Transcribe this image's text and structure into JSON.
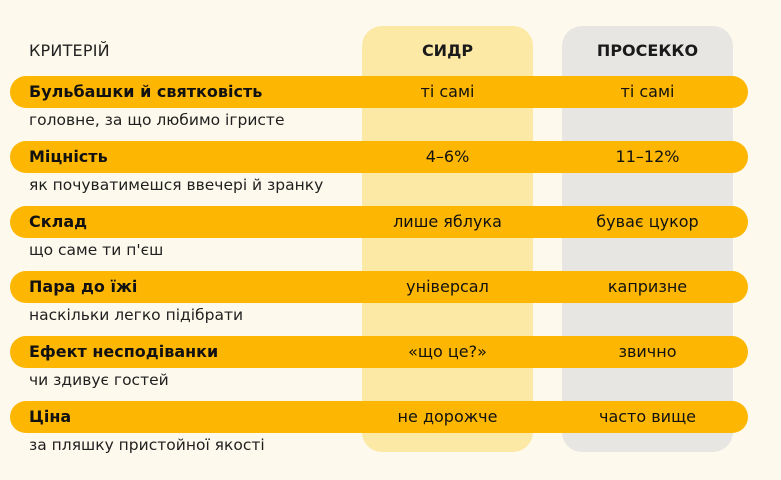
{
  "header": {
    "criteria": "КРИТЕРІЙ",
    "cidr": "СИДР",
    "prosecco": "ПРОСЕККО"
  },
  "rows": [
    {
      "title": "Бульбашки й святковість",
      "subtitle": "головне, за що любимо ігристе",
      "cidr": "ті самі",
      "prosecco": "ті самі"
    },
    {
      "title": "Міцність",
      "subtitle": "як почуватимешся ввечері й зранку",
      "cidr": "4–6%",
      "prosecco": "11–12%"
    },
    {
      "title": "Склад",
      "subtitle": "що саме ти п'єш",
      "cidr": "лише яблука",
      "prosecco": "буває цукор"
    },
    {
      "title": "Пара до їжі",
      "subtitle": "наскільки легко підібрати",
      "cidr": "універсал",
      "prosecco": "капризне"
    },
    {
      "title": "Ефект несподіванки",
      "subtitle": "чи здивує гостей",
      "cidr": "«що це?»",
      "prosecco": "звично"
    },
    {
      "title": "Ціна",
      "subtitle": "за пляшку пристойної якості",
      "cidr": "не дорожче",
      "prosecco": "часто вище"
    }
  ],
  "colors": {
    "row_bar": "#fdb702",
    "cidr_column": "#fde9a6",
    "prosecco_column": "#e7e6e2",
    "background": "#fdf9ec"
  }
}
